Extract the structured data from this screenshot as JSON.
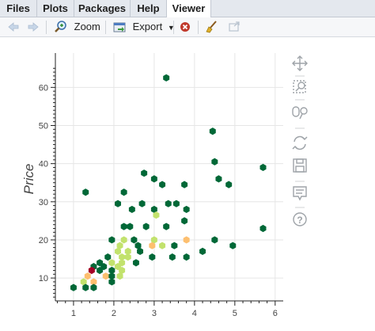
{
  "tabs": [
    {
      "label": "Files",
      "active": false
    },
    {
      "label": "Plots",
      "active": false
    },
    {
      "label": "Packages",
      "active": false
    },
    {
      "label": "Help",
      "active": false
    },
    {
      "label": "Viewer",
      "active": true
    }
  ],
  "toolbar": {
    "zoom_label": "Zoom",
    "export_label": "Export",
    "icons": [
      "back-arrow-icon",
      "forward-arrow-icon",
      "zoom-icon",
      "export-icon",
      "remove-icon",
      "clear-broom-icon",
      "open-window-icon"
    ]
  },
  "side_tools": [
    "pan-icon",
    "box-zoom-icon",
    "lasso-select-icon",
    "reset-icon",
    "save-icon",
    "hover-icon",
    "help-icon"
  ],
  "colors": {
    "dark_green": "#006837",
    "light_green": "#c2e26d",
    "yellow": "#fdbf6f",
    "dark_red": "#a50026",
    "bokeh_blue": "#26aae1"
  },
  "chart_data": {
    "type": "scatter",
    "marker": "hexbin",
    "ylabel": "Price",
    "xlabel": "",
    "xlim": [
      0.55,
      6.2
    ],
    "ylim": [
      4,
      69
    ],
    "xticks": [
      1,
      2,
      3,
      4,
      5,
      6
    ],
    "yticks": [
      10,
      20,
      30,
      40,
      50,
      60
    ],
    "grid": true,
    "points": [
      {
        "x": 3.3,
        "y": 62.5,
        "c": "dark"
      },
      {
        "x": 4.45,
        "y": 48.5,
        "c": "dark"
      },
      {
        "x": 4.5,
        "y": 40.5,
        "c": "dark"
      },
      {
        "x": 5.7,
        "y": 39.0,
        "c": "dark"
      },
      {
        "x": 2.75,
        "y": 37.5,
        "c": "dark"
      },
      {
        "x": 3.0,
        "y": 36.0,
        "c": "dark"
      },
      {
        "x": 4.6,
        "y": 36.0,
        "c": "dark"
      },
      {
        "x": 3.2,
        "y": 34.5,
        "c": "dark"
      },
      {
        "x": 3.75,
        "y": 34.5,
        "c": "dark"
      },
      {
        "x": 4.85,
        "y": 34.5,
        "c": "dark"
      },
      {
        "x": 1.3,
        "y": 32.5,
        "c": "dark"
      },
      {
        "x": 2.25,
        "y": 32.5,
        "c": "dark"
      },
      {
        "x": 2.1,
        "y": 29.5,
        "c": "dark"
      },
      {
        "x": 2.7,
        "y": 29.5,
        "c": "dark"
      },
      {
        "x": 3.35,
        "y": 29.5,
        "c": "dark"
      },
      {
        "x": 3.55,
        "y": 29.5,
        "c": "dark"
      },
      {
        "x": 2.45,
        "y": 28.0,
        "c": "dark"
      },
      {
        "x": 3.0,
        "y": 28.0,
        "c": "dark"
      },
      {
        "x": 3.8,
        "y": 28.0,
        "c": "dark"
      },
      {
        "x": 3.05,
        "y": 26.5,
        "c": "light"
      },
      {
        "x": 3.75,
        "y": 25.0,
        "c": "dark"
      },
      {
        "x": 2.25,
        "y": 23.5,
        "c": "dark"
      },
      {
        "x": 2.4,
        "y": 23.5,
        "c": "dark"
      },
      {
        "x": 2.8,
        "y": 23.5,
        "c": "dark"
      },
      {
        "x": 3.3,
        "y": 23.5,
        "c": "dark"
      },
      {
        "x": 5.7,
        "y": 23.0,
        "c": "dark"
      },
      {
        "x": 1.95,
        "y": 20.0,
        "c": "dark"
      },
      {
        "x": 2.25,
        "y": 20.0,
        "c": "light"
      },
      {
        "x": 2.5,
        "y": 20.0,
        "c": "dark"
      },
      {
        "x": 3.0,
        "y": 20.0,
        "c": "light"
      },
      {
        "x": 3.8,
        "y": 20.0,
        "c": "yellow"
      },
      {
        "x": 4.5,
        "y": 20.0,
        "c": "dark"
      },
      {
        "x": 2.15,
        "y": 18.5,
        "c": "light"
      },
      {
        "x": 2.6,
        "y": 18.5,
        "c": "dark"
      },
      {
        "x": 2.95,
        "y": 18.5,
        "c": "yellow"
      },
      {
        "x": 3.2,
        "y": 18.5,
        "c": "light"
      },
      {
        "x": 3.5,
        "y": 18.5,
        "c": "dark"
      },
      {
        "x": 4.95,
        "y": 18.5,
        "c": "dark"
      },
      {
        "x": 2.1,
        "y": 17.0,
        "c": "light"
      },
      {
        "x": 2.35,
        "y": 17.0,
        "c": "light"
      },
      {
        "x": 2.65,
        "y": 17.0,
        "c": "dark"
      },
      {
        "x": 4.2,
        "y": 17.0,
        "c": "dark"
      },
      {
        "x": 1.85,
        "y": 15.5,
        "c": "dark"
      },
      {
        "x": 2.2,
        "y": 15.5,
        "c": "light"
      },
      {
        "x": 2.35,
        "y": 15.5,
        "c": "light"
      },
      {
        "x": 2.95,
        "y": 15.5,
        "c": "dark"
      },
      {
        "x": 3.45,
        "y": 15.5,
        "c": "dark"
      },
      {
        "x": 3.8,
        "y": 15.5,
        "c": "dark"
      },
      {
        "x": 1.65,
        "y": 14.0,
        "c": "dark"
      },
      {
        "x": 1.95,
        "y": 14.0,
        "c": "light"
      },
      {
        "x": 2.2,
        "y": 14.0,
        "c": "light"
      },
      {
        "x": 2.55,
        "y": 14.0,
        "c": "dark"
      },
      {
        "x": 1.5,
        "y": 13.0,
        "c": "dark"
      },
      {
        "x": 1.75,
        "y": 13.0,
        "c": "dark"
      },
      {
        "x": 2.1,
        "y": 13.0,
        "c": "light"
      },
      {
        "x": 1.45,
        "y": 12.0,
        "c": "dark_red"
      },
      {
        "x": 1.65,
        "y": 12.0,
        "c": "dark"
      },
      {
        "x": 1.95,
        "y": 12.0,
        "c": "dark"
      },
      {
        "x": 2.2,
        "y": 12.0,
        "c": "light"
      },
      {
        "x": 1.35,
        "y": 10.5,
        "c": "yellow"
      },
      {
        "x": 1.8,
        "y": 10.5,
        "c": "yellow"
      },
      {
        "x": 1.95,
        "y": 10.5,
        "c": "dark"
      },
      {
        "x": 2.15,
        "y": 10.5,
        "c": "light"
      },
      {
        "x": 1.5,
        "y": 9.0,
        "c": "yellow"
      },
      {
        "x": 1.95,
        "y": 9.0,
        "c": "dark"
      },
      {
        "x": 1.25,
        "y": 9.0,
        "c": "light"
      },
      {
        "x": 1.3,
        "y": 7.5,
        "c": "dark"
      },
      {
        "x": 1.5,
        "y": 7.5,
        "c": "dark"
      },
      {
        "x": 1.0,
        "y": 7.5,
        "c": "dark"
      }
    ]
  }
}
